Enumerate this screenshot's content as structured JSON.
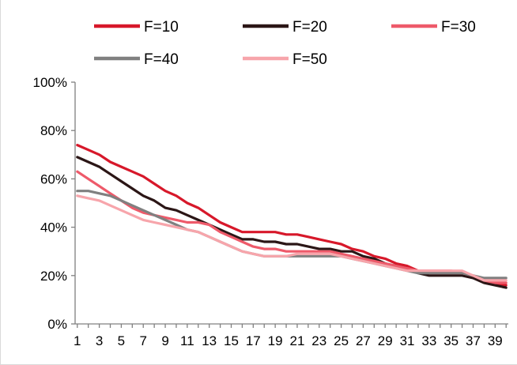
{
  "chart_data": {
    "type": "line",
    "title": "",
    "xlabel": "",
    "ylabel": "",
    "x": [
      1,
      2,
      3,
      4,
      5,
      6,
      7,
      8,
      9,
      10,
      11,
      12,
      13,
      14,
      15,
      16,
      17,
      18,
      19,
      20,
      21,
      22,
      23,
      24,
      25,
      26,
      27,
      28,
      29,
      30,
      31,
      32,
      33,
      34,
      35,
      36,
      37,
      38,
      39,
      40
    ],
    "x_tick_labels": [
      "1",
      "3",
      "5",
      "7",
      "9",
      "11",
      "13",
      "15",
      "17",
      "19",
      "21",
      "23",
      "25",
      "27",
      "29",
      "31",
      "33",
      "35",
      "37",
      "39"
    ],
    "ylim": [
      0,
      100
    ],
    "y_ticks": [
      0,
      20,
      40,
      60,
      80,
      100
    ],
    "y_tick_labels": [
      "0%",
      "20%",
      "40%",
      "60%",
      "80%",
      "100%"
    ],
    "grid": false,
    "legend_position": "top",
    "series": [
      {
        "name": "F=10",
        "color": "#d7182a",
        "values": [
          74,
          72,
          70,
          67,
          65,
          63,
          61,
          58,
          55,
          53,
          50,
          48,
          45,
          42,
          40,
          38,
          38,
          38,
          38,
          37,
          37,
          36,
          35,
          34,
          33,
          31,
          30,
          28,
          27,
          25,
          24,
          22,
          21,
          21,
          21,
          21,
          20,
          18,
          17,
          16
        ]
      },
      {
        "name": "F=20",
        "color": "#2b1616",
        "values": [
          69,
          67,
          65,
          62,
          59,
          56,
          53,
          51,
          48,
          47,
          45,
          43,
          41,
          39,
          37,
          35,
          35,
          34,
          34,
          33,
          33,
          32,
          31,
          31,
          30,
          30,
          28,
          27,
          25,
          24,
          23,
          21,
          20,
          20,
          20,
          20,
          19,
          17,
          16,
          15
        ]
      },
      {
        "name": "F=30",
        "color": "#ee5a6a",
        "values": [
          63,
          60,
          57,
          54,
          51,
          48,
          46,
          45,
          44,
          43,
          42,
          42,
          41,
          38,
          36,
          34,
          32,
          31,
          31,
          30,
          30,
          30,
          30,
          30,
          29,
          28,
          27,
          26,
          25,
          24,
          23,
          22,
          22,
          22,
          22,
          21,
          20,
          18,
          17,
          17
        ]
      },
      {
        "name": "F=40",
        "color": "#808080",
        "values": [
          55,
          55,
          54,
          53,
          51,
          49,
          47,
          45,
          43,
          41,
          39,
          38,
          36,
          34,
          32,
          30,
          29,
          28,
          28,
          28,
          28,
          28,
          28,
          28,
          28,
          27,
          26,
          25,
          24,
          23,
          22,
          21,
          21,
          21,
          21,
          21,
          20,
          19,
          19,
          19
        ]
      },
      {
        "name": "F=50",
        "color": "#f7a5ab",
        "values": [
          53,
          52,
          51,
          49,
          47,
          45,
          43,
          42,
          41,
          40,
          39,
          38,
          36,
          34,
          32,
          30,
          29,
          28,
          28,
          28,
          29,
          29,
          29,
          29,
          28,
          27,
          26,
          25,
          24,
          23,
          22,
          22,
          22,
          22,
          22,
          22,
          20,
          18,
          18,
          18
        ]
      }
    ]
  }
}
